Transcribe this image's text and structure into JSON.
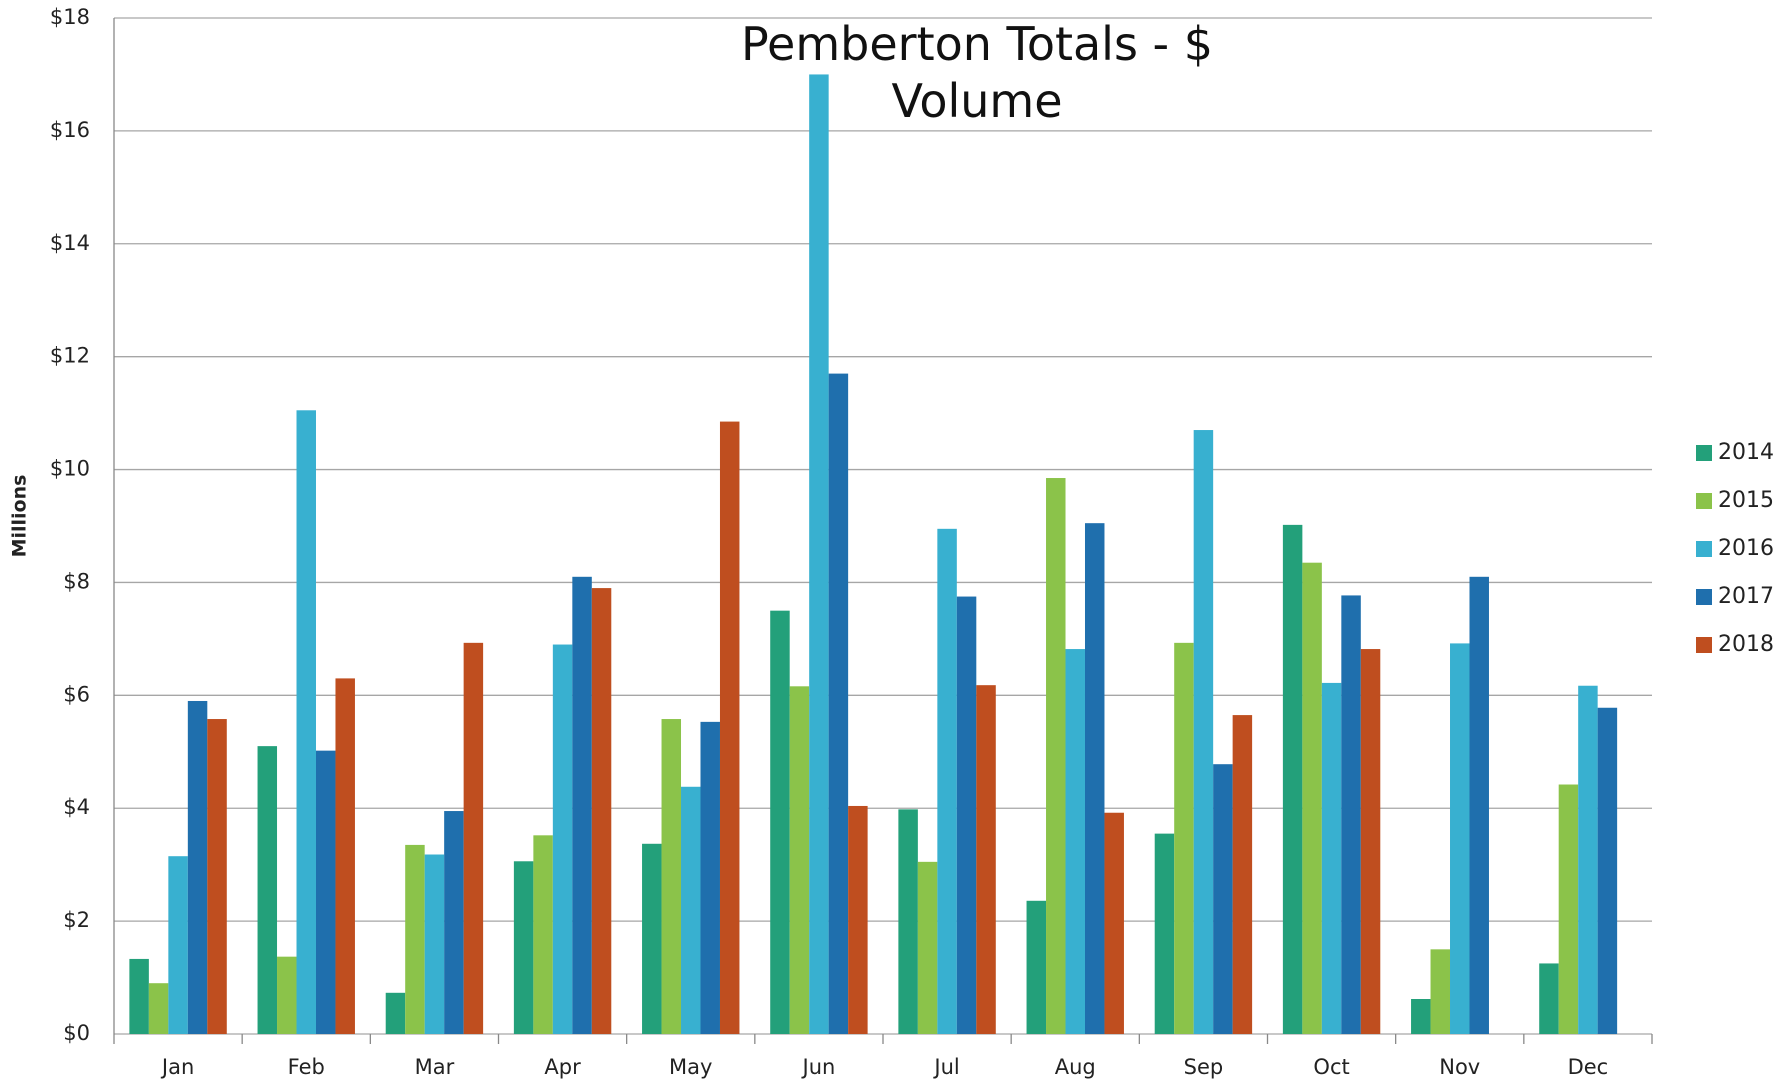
{
  "chart_data": {
    "type": "bar",
    "title": "Pemberton Totals - $ Volume",
    "y_label": "Millions",
    "categories": [
      "Jan",
      "Feb",
      "Mar",
      "Apr",
      "May",
      "Jun",
      "Jul",
      "Aug",
      "Sep",
      "Oct",
      "Nov",
      "Dec"
    ],
    "series": [
      {
        "name": "2014",
        "color": "#23a07a",
        "values": [
          1.33,
          5.1,
          0.73,
          3.06,
          3.37,
          7.5,
          3.98,
          2.36,
          3.55,
          9.02,
          0.62,
          1.25
        ]
      },
      {
        "name": "2015",
        "color": "#8bc34a",
        "values": [
          0.9,
          1.37,
          3.35,
          3.52,
          5.58,
          6.16,
          3.05,
          9.85,
          6.93,
          8.35,
          1.5,
          4.42
        ]
      },
      {
        "name": "2016",
        "color": "#38b0d0",
        "values": [
          3.15,
          11.05,
          3.18,
          6.9,
          4.38,
          17.0,
          8.95,
          6.82,
          10.7,
          6.22,
          6.92,
          6.17
        ]
      },
      {
        "name": "2017",
        "color": "#1f6fad",
        "values": [
          5.9,
          5.02,
          3.95,
          8.1,
          5.53,
          11.7,
          7.75,
          9.05,
          4.78,
          7.77,
          8.1,
          5.78
        ]
      },
      {
        "name": "2018",
        "color": "#bf4e1f",
        "values": [
          5.58,
          6.3,
          6.93,
          7.9,
          10.85,
          4.04,
          6.18,
          3.92,
          5.65,
          6.82,
          null,
          null
        ]
      }
    ],
    "ylim": [
      0,
      18
    ],
    "yticks": [
      {
        "value": 0,
        "label": "$0"
      },
      {
        "value": 2,
        "label": "$2"
      },
      {
        "value": 4,
        "label": "$4"
      },
      {
        "value": 6,
        "label": "$6"
      },
      {
        "value": 8,
        "label": "$8"
      },
      {
        "value": 10,
        "label": "$10"
      },
      {
        "value": 12,
        "label": "$12"
      },
      {
        "value": 14,
        "label": "$14"
      },
      {
        "value": 16,
        "label": "$16"
      },
      {
        "value": 18,
        "label": "$18"
      }
    ],
    "grid": true,
    "legend": "right"
  }
}
